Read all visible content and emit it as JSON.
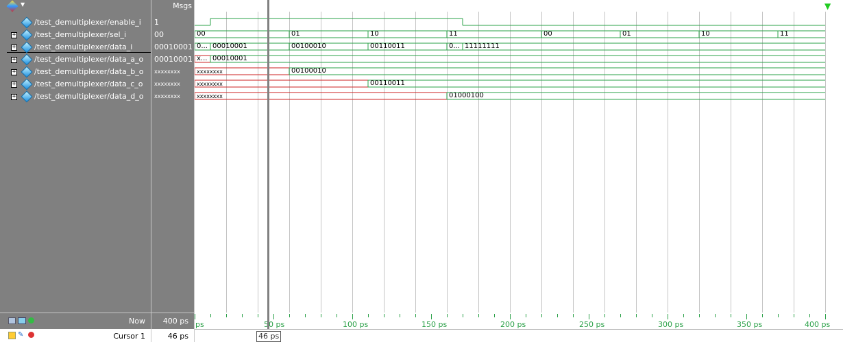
{
  "header": {
    "msgs_label": "Msgs"
  },
  "signals": [
    {
      "name": "/test_demultiplexer/enable_i",
      "value": "1",
      "expandable": false
    },
    {
      "name": "/test_demultiplexer/sel_i",
      "value": "00",
      "expandable": true
    },
    {
      "name": "/test_demultiplexer/data_i",
      "value": "00010001",
      "expandable": true
    },
    {
      "name": "/test_demultiplexer/data_a_o",
      "value": "00010001",
      "expandable": true
    },
    {
      "name": "/test_demultiplexer/data_b_o",
      "value": "xxxxxxxx",
      "expandable": true
    },
    {
      "name": "/test_demultiplexer/data_c_o",
      "value": "xxxxxxxx",
      "expandable": true
    },
    {
      "name": "/test_demultiplexer/data_d_o",
      "value": "xxxxxxxx",
      "expandable": true
    }
  ],
  "wave_labels": {
    "sel": [
      "00",
      "01",
      "10",
      "11",
      "00",
      "01",
      "10",
      "11"
    ],
    "data_i": [
      "0...",
      "00010001",
      "00100010",
      "00110011",
      "0...",
      "11111111"
    ],
    "data_a": [
      "x...",
      "00010001"
    ],
    "data_b": [
      "xxxxxxxx",
      "00100010"
    ],
    "data_c": [
      "xxxxxxxx",
      "00110011"
    ],
    "data_d": [
      "xxxxxxxx",
      "01000100"
    ]
  },
  "footer": {
    "now_label": "Now",
    "now_value": "400 ps",
    "cursor_label": "Cursor 1",
    "cursor_value": "46 ps",
    "cursor_tag": "46 ps"
  },
  "timeline": [
    "ps",
    "50 ps",
    "100 ps",
    "150 ps",
    "200 ps",
    "250 ps",
    "300 ps",
    "350 ps",
    "400 ps"
  ],
  "colors": {
    "wave": "#2aa047",
    "unknown": "#cc2222",
    "cursor": "#808080",
    "pane": "#808080"
  }
}
